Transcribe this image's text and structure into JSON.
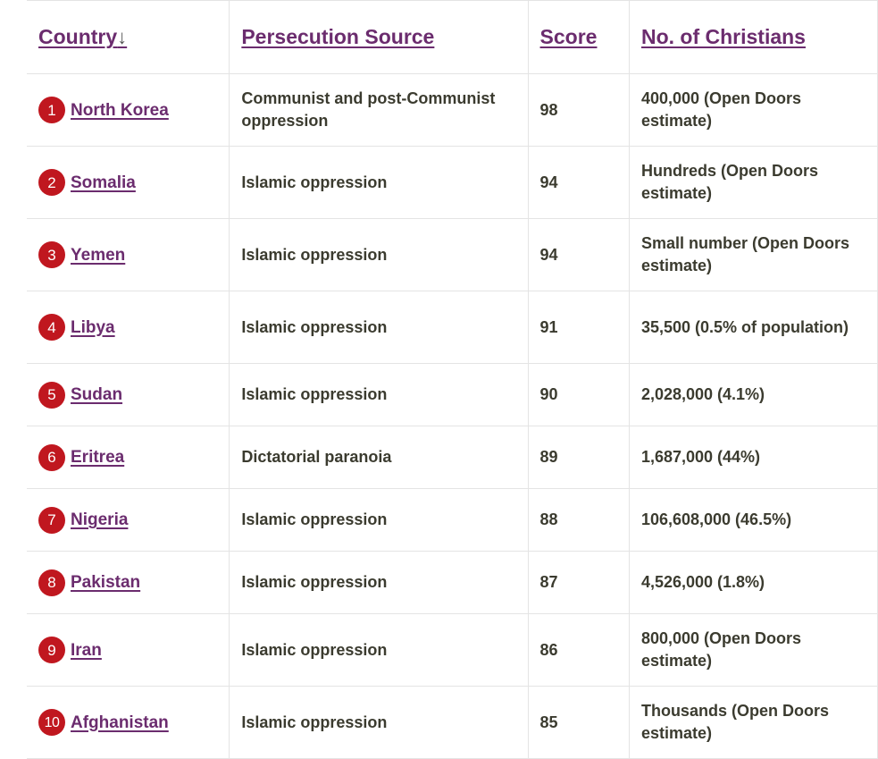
{
  "headers": {
    "country": "Country",
    "sort_arrow": "↓",
    "source": "Persecution Source",
    "score": "Score",
    "christians": "No. of Christians"
  },
  "colors": {
    "link": "#6b2c6e",
    "rank_badge": "#c0171f",
    "text": "#3b3b2f",
    "border": "#e4e4e4"
  },
  "rows": [
    {
      "rank": "1",
      "country": "North Korea",
      "source": "Communist and post-Communist oppression",
      "score": "98",
      "christians": "400,000 (Open Doors estimate)"
    },
    {
      "rank": "2",
      "country": "Somalia",
      "source": "Islamic oppression",
      "score": "94",
      "christians": "Hundreds (Open Doors estimate)"
    },
    {
      "rank": "3",
      "country": "Yemen",
      "source": "Islamic oppression",
      "score": "94",
      "christians": "Small number (Open Doors estimate)"
    },
    {
      "rank": "4",
      "country": "Libya",
      "source": "Islamic oppression",
      "score": "91",
      "christians": "35,500 (0.5% of population)"
    },
    {
      "rank": "5",
      "country": "Sudan",
      "source": "Islamic oppression",
      "score": "90",
      "christians": "2,028,000 (4.1%)"
    },
    {
      "rank": "6",
      "country": "Eritrea",
      "source": "Dictatorial paranoia",
      "score": "89",
      "christians": "1,687,000 (44%)"
    },
    {
      "rank": "7",
      "country": "Nigeria",
      "source": "Islamic oppression",
      "score": "88",
      "christians": "106,608,000 (46.5%)"
    },
    {
      "rank": "8",
      "country": "Pakistan",
      "source": "Islamic oppression",
      "score": "87",
      "christians": "4,526,000 (1.8%)"
    },
    {
      "rank": "9",
      "country": "Iran",
      "source": "Islamic oppression",
      "score": "86",
      "christians": "800,000 (Open Doors estimate)"
    },
    {
      "rank": "10",
      "country": "Afghanistan",
      "source": "Islamic oppression",
      "score": "85",
      "christians": "Thousands (Open Doors estimate)"
    }
  ]
}
